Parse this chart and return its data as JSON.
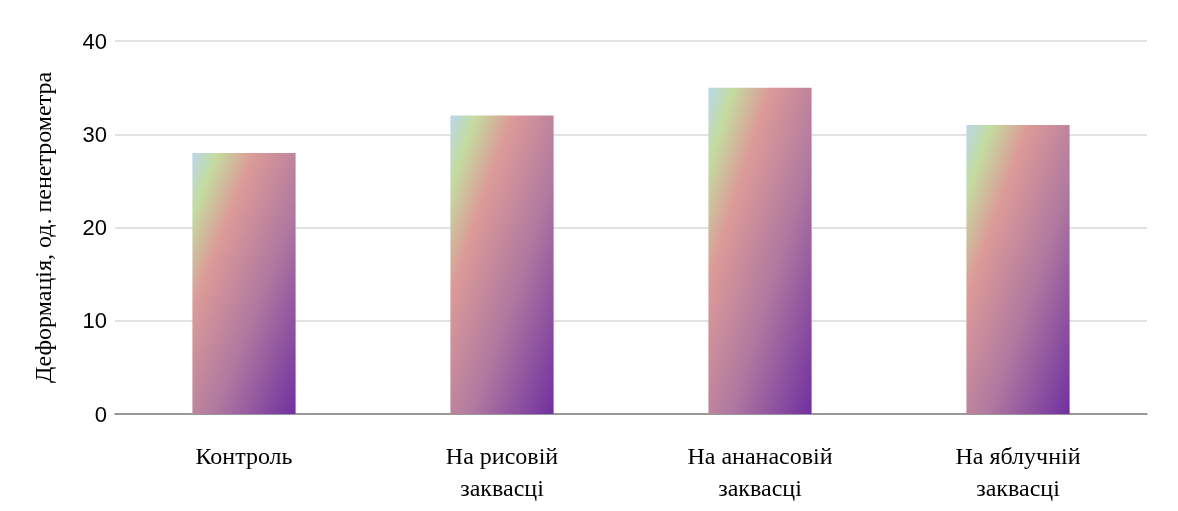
{
  "chart_data": {
    "type": "bar",
    "ylabel": "Деформація, од. пенетрометра",
    "categories": [
      "Контроль",
      "На рисовій\nзаквасці",
      "На ананасовій\nзаквасці",
      "На яблучній\nзаквасці"
    ],
    "values": [
      28,
      32,
      35,
      31
    ],
    "color": "#b07aa0",
    "ylim": [
      0,
      40
    ],
    "yticks": [
      0,
      10,
      20,
      30,
      40
    ],
    "grid": "y"
  }
}
